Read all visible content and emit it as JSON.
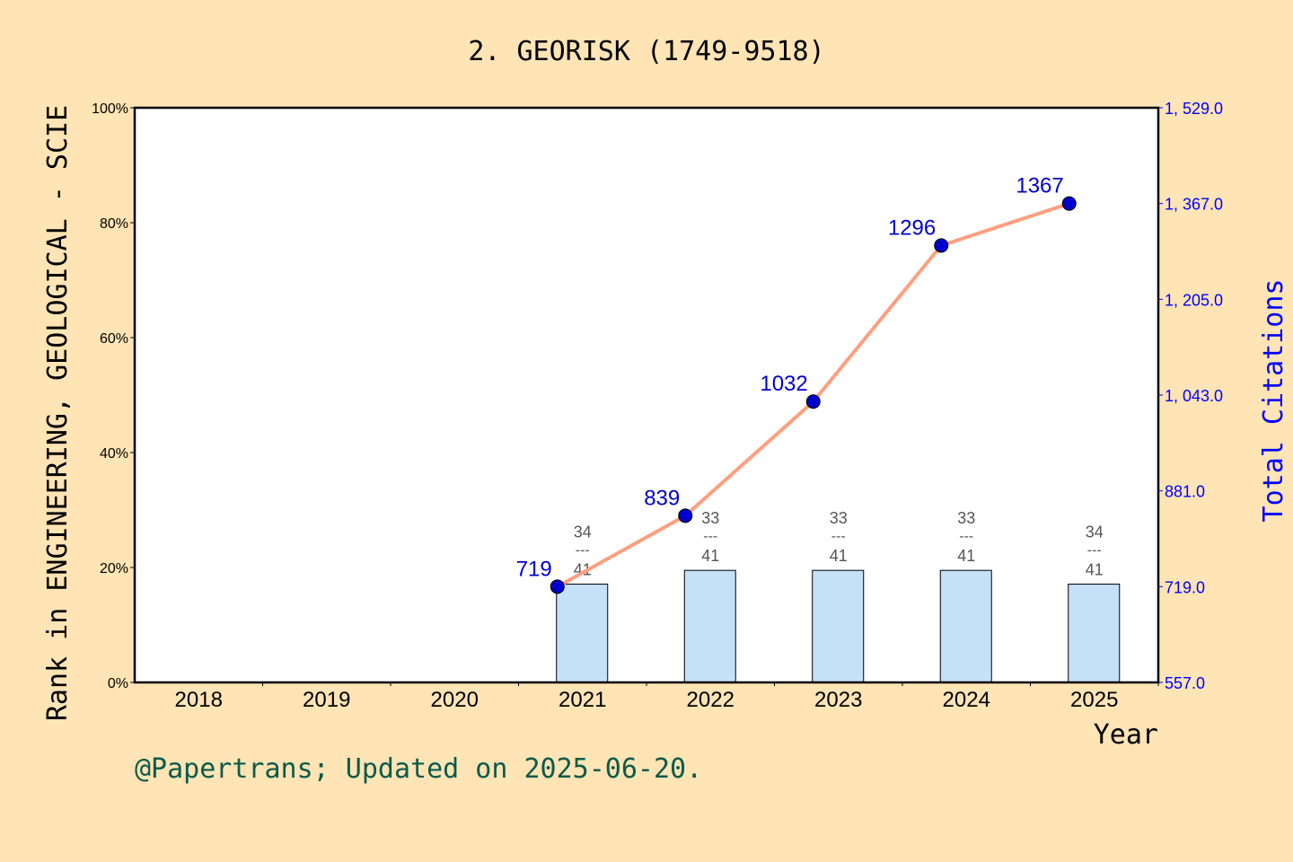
{
  "chart_data": {
    "type": "bar+line",
    "title": "2. GEORISK (1749-9518)",
    "xlabel": "Year",
    "ylabel_left": "Rank in ENGINEERING, GEOLOGICAL - SCIE",
    "ylabel_right": "Total Citations",
    "categories": [
      "2018",
      "2019",
      "2020",
      "2021",
      "2022",
      "2023",
      "2024",
      "2025"
    ],
    "left_axis": {
      "ylim": [
        0,
        100
      ],
      "ticks": [
        "0%",
        "20%",
        "40%",
        "60%",
        "80%",
        "100%"
      ]
    },
    "right_axis": {
      "ylim": [
        557,
        1529
      ],
      "ticks": [
        "557.0",
        "719.0",
        "881.0",
        "1, 043.0",
        "1, 205.0",
        "1, 367.0",
        "1, 529.0"
      ]
    },
    "ranks": [
      {
        "year": "2021",
        "rank": 34,
        "total": 41
      },
      {
        "year": "2022",
        "rank": 33,
        "total": 41
      },
      {
        "year": "2023",
        "rank": 33,
        "total": 41
      },
      {
        "year": "2024",
        "rank": 33,
        "total": 41
      },
      {
        "year": "2025",
        "rank": 34,
        "total": 41
      }
    ],
    "bar_percent": [
      null,
      null,
      null,
      17.1,
      19.5,
      19.5,
      19.5,
      17.1
    ],
    "citations": [
      {
        "year": "2021",
        "value": 719
      },
      {
        "year": "2022",
        "value": 839
      },
      {
        "year": "2023",
        "value": 1032
      },
      {
        "year": "2024",
        "value": 1296
      },
      {
        "year": "2025",
        "value": 1367
      }
    ],
    "colors": {
      "background": "#FFE4B5",
      "bar": "#C6E0F7",
      "line": "#FF9F80",
      "point": "#0000CD",
      "right_axis": "#0000FF",
      "footer": "#0B5A4A",
      "rank_label": "#555555"
    }
  },
  "footer": "@Papertrans; Updated on 2025-06-20."
}
